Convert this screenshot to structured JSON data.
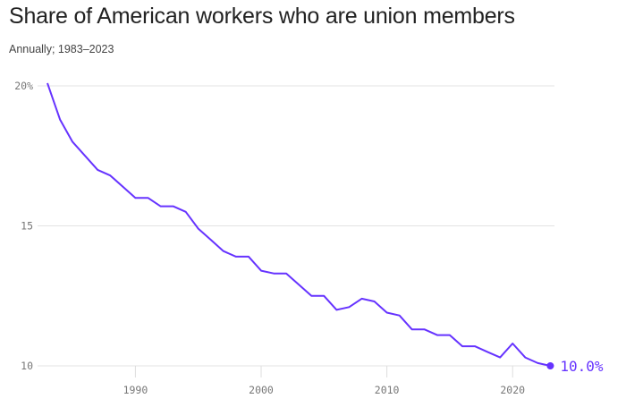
{
  "title": "Share of American workers who are union members",
  "subtitle": "Annually; 1983–2023",
  "chart_data": {
    "type": "line",
    "title": "Share of American workers who are union members",
    "subtitle": "Annually; 1983–2023",
    "xlabel": "",
    "ylabel": "",
    "xlim": [
      1983,
      2023
    ],
    "ylim": [
      10,
      20
    ],
    "x_ticks": [
      1990,
      2000,
      2010,
      2020
    ],
    "y_ticks": [
      {
        "value": 20,
        "label": "20%"
      },
      {
        "value": 15,
        "label": "15"
      },
      {
        "value": 10,
        "label": "10"
      }
    ],
    "grid": "horizontal",
    "color": "#6633ff",
    "x": [
      1983,
      1984,
      1985,
      1986,
      1987,
      1988,
      1989,
      1990,
      1991,
      1992,
      1993,
      1994,
      1995,
      1996,
      1997,
      1998,
      1999,
      2000,
      2001,
      2002,
      2003,
      2004,
      2005,
      2006,
      2007,
      2008,
      2009,
      2010,
      2011,
      2012,
      2013,
      2014,
      2015,
      2016,
      2017,
      2018,
      2019,
      2020,
      2021,
      2022,
      2023
    ],
    "values": [
      20.1,
      18.8,
      18.0,
      17.5,
      17.0,
      16.8,
      16.4,
      16.0,
      16.0,
      15.7,
      15.7,
      15.5,
      14.9,
      14.5,
      14.1,
      13.9,
      13.9,
      13.4,
      13.3,
      13.3,
      12.9,
      12.5,
      12.5,
      12.0,
      12.1,
      12.4,
      12.3,
      11.9,
      11.8,
      11.3,
      11.3,
      11.1,
      11.1,
      10.7,
      10.7,
      10.5,
      10.3,
      10.8,
      10.3,
      10.1,
      10.0
    ],
    "end_label": "10.0%"
  }
}
